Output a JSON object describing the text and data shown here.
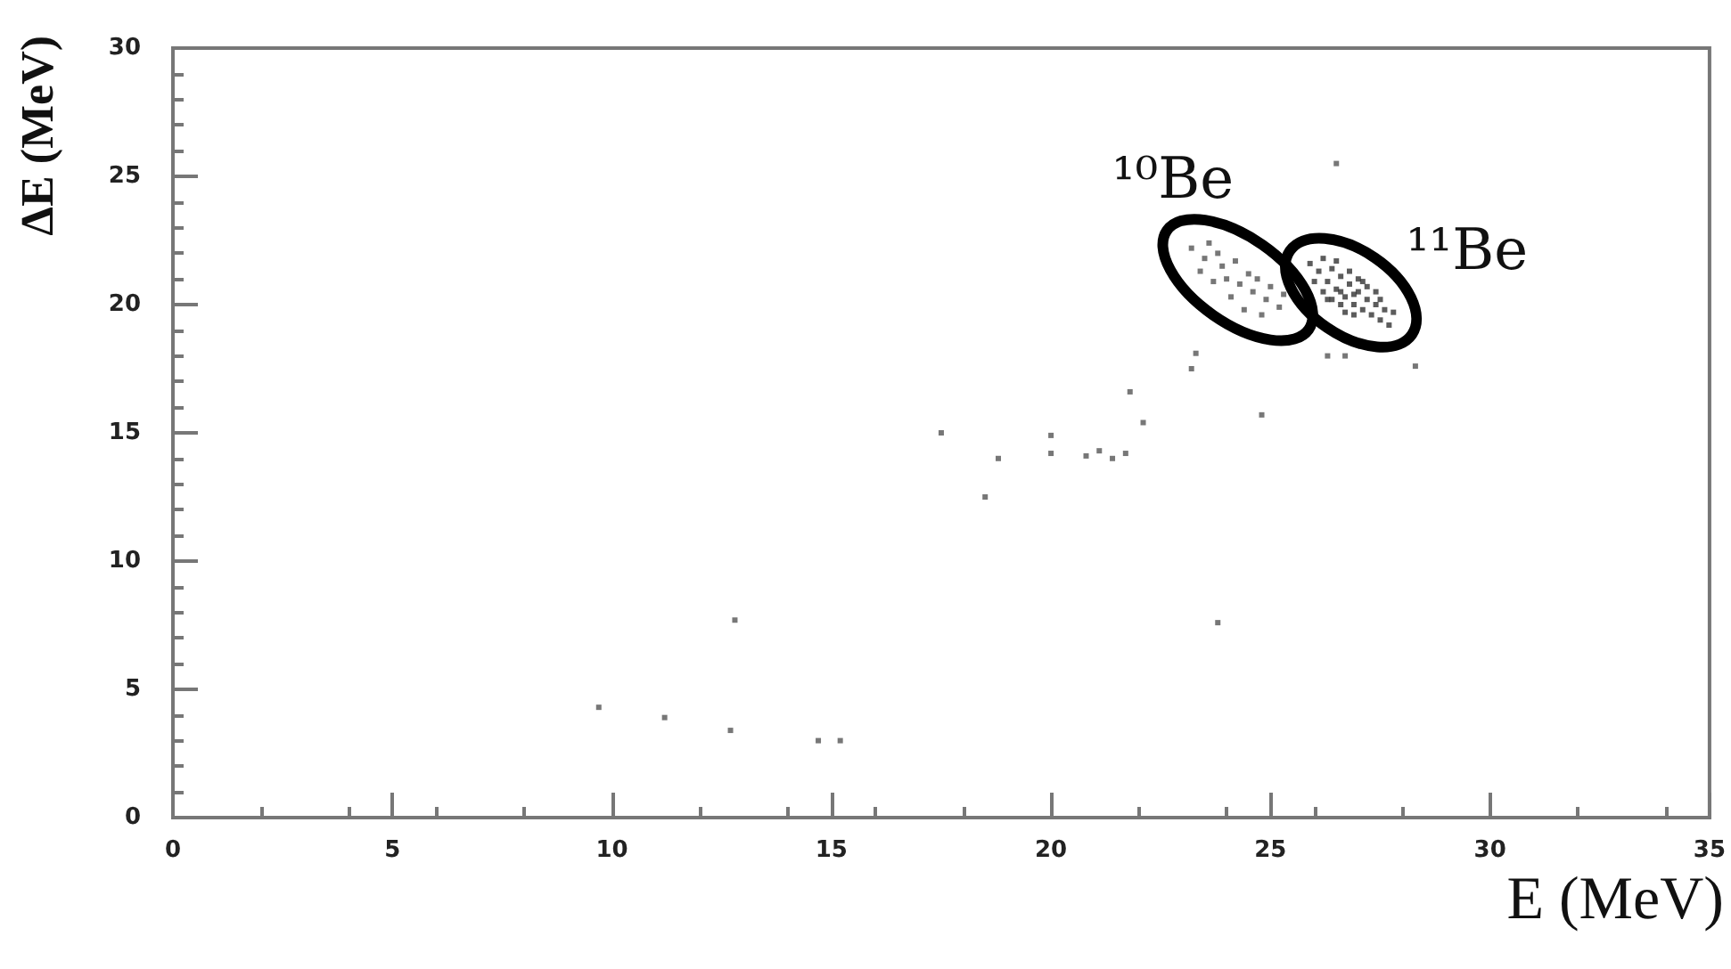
{
  "chart_data": {
    "type": "scatter",
    "xlabel": "E (MeV)",
    "ylabel": "ΔE (MeV)",
    "xlim": [
      0,
      35
    ],
    "xticks": [
      0,
      5,
      10,
      15,
      20,
      25,
      30,
      35
    ],
    "ylim": [
      0,
      30
    ],
    "yticks": [
      0,
      5,
      10,
      15,
      20,
      25,
      30
    ],
    "grid": false,
    "marker": "square",
    "annotations": [
      "¹⁰Be",
      "¹¹Be"
    ],
    "series": [
      {
        "color": "#555555",
        "x": [
          9.7,
          11.2,
          12.7,
          12.8,
          14.7,
          15.2,
          18.5,
          18.8,
          17.5,
          20.0,
          20.0,
          20.8,
          21.1,
          21.4,
          21.7,
          21.8,
          22.1,
          23.8,
          24.8,
          23.2,
          23.3,
          26.5,
          26.3,
          26.7,
          28.3
        ],
        "values": [
          4.3,
          3.9,
          3.4,
          7.7,
          3.0,
          3.0,
          12.5,
          14.0,
          15.0,
          14.2,
          14.9,
          14.1,
          14.3,
          14.0,
          14.2,
          16.6,
          15.4,
          7.6,
          15.7,
          17.5,
          18.1,
          25.5,
          18.0,
          18.0,
          17.6
        ]
      },
      {
        "color": "#555555",
        "x": [
          23.2,
          23.5,
          23.4,
          23.8,
          23.9,
          24.0,
          24.2,
          24.3,
          24.5,
          24.6,
          24.7,
          24.9,
          25.0,
          25.2,
          24.1,
          23.7,
          24.4,
          25.3,
          23.6,
          24.8
        ],
        "values": [
          22.2,
          21.8,
          21.3,
          22.0,
          21.5,
          21.0,
          21.7,
          20.8,
          21.2,
          20.5,
          21.0,
          20.2,
          20.7,
          19.9,
          20.3,
          20.9,
          19.8,
          20.4,
          22.4,
          19.6
        ]
      },
      {
        "color": "#333333",
        "x": [
          25.9,
          26.1,
          26.2,
          26.3,
          26.4,
          26.5,
          26.6,
          26.7,
          26.8,
          26.9,
          27.0,
          27.1,
          27.2,
          27.3,
          27.4,
          27.5,
          27.6,
          27.7,
          26.4,
          26.6,
          26.8,
          27.0,
          27.2,
          26.2,
          26.9,
          27.4,
          26.5,
          26.0,
          27.8,
          27.1,
          26.7,
          26.3,
          27.5,
          26.9,
          26.6
        ],
        "values": [
          21.6,
          21.3,
          21.8,
          20.9,
          21.4,
          20.6,
          21.1,
          20.3,
          20.8,
          20.0,
          20.5,
          19.8,
          20.2,
          19.6,
          20.0,
          19.4,
          19.8,
          19.2,
          20.2,
          20.0,
          21.3,
          21.0,
          20.7,
          20.5,
          19.6,
          20.5,
          21.7,
          20.9,
          19.7,
          20.9,
          19.7,
          20.2,
          20.2,
          20.4,
          20.5
        ]
      }
    ]
  }
}
